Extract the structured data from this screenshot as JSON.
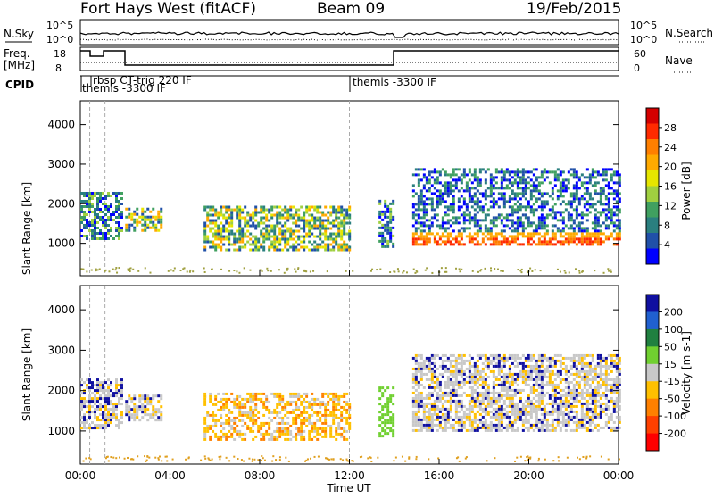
{
  "header": {
    "site": "Fort Hays West (fitACF)",
    "beam": "Beam 09",
    "date": "19/Feb/2015"
  },
  "top_panels": {
    "nsky_label": "N.Sky",
    "nsky_ticks": [
      "10^5",
      "10^0"
    ],
    "nsearch_label": "N.Search",
    "nsearch_ticks": [
      "10^5",
      "10^0"
    ],
    "freq_label_1": "Freq.",
    "freq_label_2": "[MHz]",
    "freq_ticks": [
      "18",
      "8"
    ],
    "nave_label": "Nave",
    "nave_ticks": [
      "60",
      "0"
    ],
    "cpid_label": "CPID",
    "cpid_entries": [
      {
        "text": "rbsp CT-trig 220 IF",
        "hour": 0.8
      },
      {
        "text": "themis -3300 IF",
        "hour": 0.05
      },
      {
        "text": "themis -3300 IF",
        "hour": 12.0
      }
    ]
  },
  "time_axis": {
    "label": "Time UT",
    "ticks": [
      "00:00",
      "04:00",
      "08:00",
      "12:00",
      "16:00",
      "20:00",
      "00:00"
    ]
  },
  "power_legend": {
    "label": "Power [dB]",
    "ticks": [
      "28",
      "24",
      "20",
      "16",
      "12",
      "8",
      "4"
    ],
    "colors": [
      "#d40000",
      "#ff2a00",
      "#ff7f00",
      "#ffaa00",
      "#e6e600",
      "#a0d040",
      "#40a060",
      "#2a7f7f",
      "#2050a8",
      "#0000ff"
    ]
  },
  "velocity_legend": {
    "label": "Velocity [m s-1]",
    "ticks": [
      "200",
      "100",
      "50",
      "15",
      "-15",
      "-50",
      "-100",
      "-200"
    ],
    "colors": [
      "#1010a0",
      "#2060d0",
      "#208040",
      "#70d030",
      "#c8c8c8",
      "#ffc000",
      "#ff8000",
      "#ff4000",
      "#ff0000"
    ]
  },
  "chart_data": [
    {
      "type": "heatmap",
      "title": "",
      "xlabel": "Time UT",
      "ylabel": "Slant Range [km]",
      "xlim": [
        0,
        24
      ],
      "ylim": [
        180,
        4600
      ],
      "yticks": [
        1000,
        2000,
        3000,
        4000
      ],
      "colorbar": "Power [dB]",
      "regions": [
        {
          "t0": 0.0,
          "t1": 1.9,
          "r0": 1100,
          "r1": 2300,
          "level": "mid"
        },
        {
          "t0": 2.0,
          "t1": 3.6,
          "r0": 1300,
          "r1": 1900,
          "level": "low"
        },
        {
          "t0": 5.5,
          "t1": 12.0,
          "r0": 800,
          "r1": 1950,
          "level": "mid-high"
        },
        {
          "t0": 13.3,
          "t1": 14.0,
          "r0": 900,
          "r1": 2100,
          "level": "mid"
        },
        {
          "t0": 14.8,
          "t1": 24.0,
          "r0": 1000,
          "r1": 2900,
          "level": "high-band"
        }
      ]
    },
    {
      "type": "heatmap",
      "title": "",
      "xlabel": "Time UT",
      "ylabel": "Slant Range [km]",
      "xlim": [
        0,
        24
      ],
      "ylim": [
        180,
        4600
      ],
      "yticks": [
        1000,
        2000,
        3000,
        4000
      ],
      "colorbar": "Velocity [m s-1]",
      "regions": [
        {
          "t0": 0.0,
          "t1": 1.9,
          "r0": 1100,
          "r1": 2300,
          "velocity": "-15 to 15"
        },
        {
          "t0": 2.0,
          "t1": 3.6,
          "r0": 1300,
          "r1": 1900,
          "velocity": "-15 to 15"
        },
        {
          "t0": 5.5,
          "t1": 12.0,
          "r0": 800,
          "r1": 1950,
          "velocity": "-50 to -100"
        },
        {
          "t0": 13.3,
          "t1": 14.0,
          "r0": 900,
          "r1": 2100,
          "velocity": "15 to 50"
        },
        {
          "t0": 14.8,
          "t1": 24.0,
          "r0": 1000,
          "r1": 2900,
          "velocity": "-15 to 15"
        }
      ]
    }
  ]
}
